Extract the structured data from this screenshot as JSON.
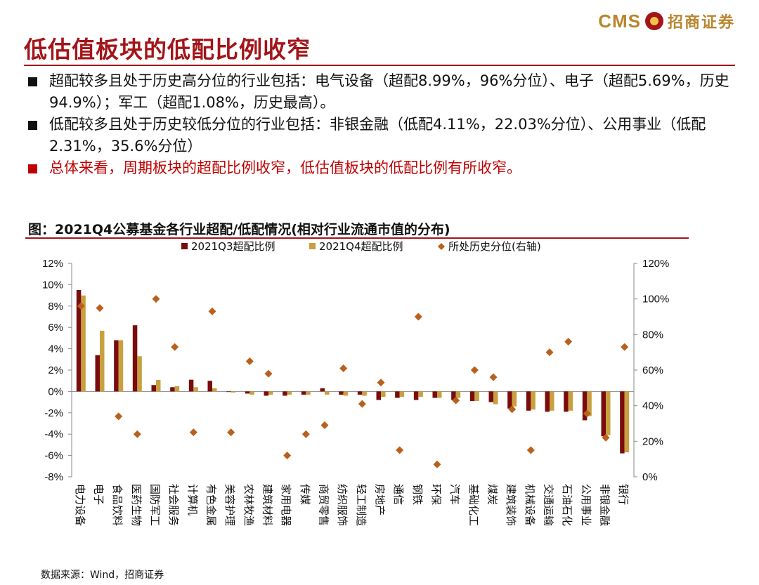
{
  "header": {
    "logo_cms": "CMS",
    "logo_text": "招商证券",
    "title": "低估值板块的低配比例收窄"
  },
  "bullets": [
    {
      "text": "超配较多且处于历史高分位的行业包括：电气设备（超配8.99%，96%分位）、电子（超配5.69%，历史94.9%）；军工（超配1.08%，历史最高）。",
      "color": "#111111"
    },
    {
      "text": "低配较多且处于历史较低分位的行业包括：非银金融（低配4.11%，22.03%分位）、公用事业（低配2.31%，35.6%分位）",
      "color": "#111111"
    },
    {
      "text": "总体来看，周期板块的超配比例收窄，低估值板块的低配比例有所收窄。",
      "color": "#C00000"
    }
  ],
  "chart_caption": "图：2021Q4公募基金各行业超配/低配情况(相对行业流通市值的分布)",
  "source": "数据来源：Wind，招商证券",
  "chart_data": {
    "type": "bar",
    "title": "图：2021Q4公募基金各行业超配/低配情况(相对行业流通市值的分布)",
    "categories": [
      "电力设备",
      "电子",
      "食品饮料",
      "医药生物",
      "国防军工",
      "社会服务",
      "计算机",
      "有色金属",
      "美容护理",
      "农林牧渔",
      "建筑材料",
      "家用电器",
      "传媒",
      "商贸零售",
      "纺织服饰",
      "轻工制造",
      "房地产",
      "通信",
      "钢铁",
      "环保",
      "汽车",
      "基础化工",
      "煤炭",
      "建筑装饰",
      "机械设备",
      "交通运输",
      "石油石化",
      "公用事业",
      "非银金融",
      "银行"
    ],
    "series": [
      {
        "name": "2021Q3超配比例",
        "type": "bar",
        "axis": "left",
        "color": "#7B0C0C",
        "values": [
          9.5,
          3.4,
          4.8,
          6.2,
          0.6,
          0.4,
          1.1,
          1.0,
          -0.05,
          -0.2,
          -0.4,
          -0.4,
          -0.3,
          0.3,
          -0.3,
          -0.3,
          -0.8,
          -0.6,
          -0.8,
          -0.6,
          -0.8,
          -0.9,
          -1.0,
          -1.6,
          -1.8,
          -1.9,
          -1.9,
          -2.7,
          -4.2,
          -5.8
        ]
      },
      {
        "name": "2021Q4超配比例",
        "type": "bar",
        "axis": "left",
        "color": "#C9A040",
        "values": [
          8.99,
          5.69,
          4.8,
          3.3,
          1.08,
          0.5,
          0.4,
          0.3,
          -0.1,
          -0.3,
          -0.3,
          -0.3,
          -0.3,
          -0.3,
          -0.4,
          -0.4,
          -0.5,
          -0.5,
          -0.5,
          -0.6,
          -0.6,
          -0.9,
          -1.2,
          -1.4,
          -1.7,
          -1.8,
          -1.8,
          -2.31,
          -4.11,
          -5.7
        ]
      },
      {
        "name": "所处历史分位(右轴)",
        "type": "scatter",
        "axis": "right",
        "color": "#B8601C",
        "values": [
          96,
          94.9,
          34,
          24,
          100,
          73,
          25,
          93,
          25,
          65,
          58,
          12,
          24,
          29,
          61,
          41,
          53,
          15,
          90,
          7,
          43,
          60,
          56,
          38,
          15,
          70,
          76,
          35.6,
          22.03,
          73
        ]
      }
    ],
    "ylim_left": [
      -8,
      12
    ],
    "ylim_right": [
      0,
      120
    ],
    "yticks_left": [
      "12%",
      "10%",
      "8%",
      "6%",
      "4%",
      "2%",
      "0%",
      "-2%",
      "-4%",
      "-6%",
      "-8%"
    ],
    "yticks_right": [
      "120%",
      "100%",
      "80%",
      "60%",
      "40%",
      "20%",
      "0%"
    ],
    "legend_position": "top-center",
    "grid": false
  }
}
